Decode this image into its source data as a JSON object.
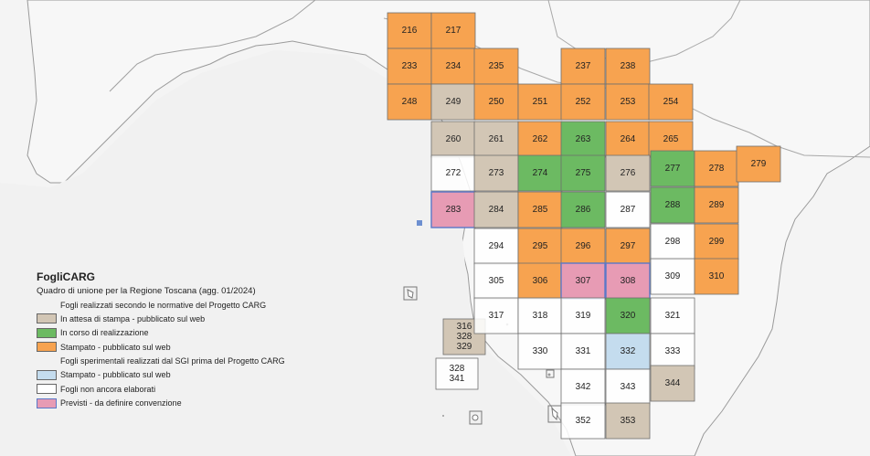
{
  "colors": {
    "attesa": "#d2c6b5",
    "corso": "#6cba62",
    "stampato": "#f7a350",
    "sperimentale": "#c4dcee",
    "non_elaborato": "#ffffff",
    "previsti": "#e79bb4"
  },
  "legend": {
    "title": "FogliCARG",
    "subtitle": "Quadro di unione per la Regione Toscana (agg. 01/2024)",
    "heading1": "Fogli realizzati secondo le normative del Progetto CARG",
    "item_attesa": "In attesa di stampa - pubblicato sul web",
    "item_corso": "In corso di realizzazione",
    "item_stampato": "Stampato - pubblicato sul web",
    "heading2": "Fogli sperimentali realizzati dal SGI prima del Progetto CARG",
    "item_sperimentale": "Stampato - pubblicato sul web",
    "item_non_elaborato": "Fogli non ancora elaborati",
    "item_previsti": "Previsti - da definire convenzione"
  },
  "sheets": [
    {
      "id": "216",
      "status": "stampato"
    },
    {
      "id": "217",
      "status": "stampato"
    },
    {
      "id": "233",
      "status": "stampato"
    },
    {
      "id": "234",
      "status": "stampato"
    },
    {
      "id": "235",
      "status": "stampato"
    },
    {
      "id": "237",
      "status": "stampato"
    },
    {
      "id": "238",
      "status": "stampato"
    },
    {
      "id": "248",
      "status": "stampato"
    },
    {
      "id": "249",
      "status": "attesa"
    },
    {
      "id": "250",
      "status": "stampato"
    },
    {
      "id": "251",
      "status": "stampato"
    },
    {
      "id": "252",
      "status": "stampato"
    },
    {
      "id": "253",
      "status": "stampato"
    },
    {
      "id": "254",
      "status": "stampato"
    },
    {
      "id": "260",
      "status": "attesa"
    },
    {
      "id": "261",
      "status": "attesa"
    },
    {
      "id": "262",
      "status": "stampato"
    },
    {
      "id": "263",
      "status": "corso"
    },
    {
      "id": "264",
      "status": "stampato"
    },
    {
      "id": "265",
      "status": "stampato"
    },
    {
      "id": "272",
      "status": "non_elaborato"
    },
    {
      "id": "273",
      "status": "attesa"
    },
    {
      "id": "274",
      "status": "corso"
    },
    {
      "id": "275",
      "status": "corso"
    },
    {
      "id": "276",
      "status": "attesa"
    },
    {
      "id": "277",
      "status": "corso"
    },
    {
      "id": "278",
      "status": "stampato"
    },
    {
      "id": "279",
      "status": "stampato"
    },
    {
      "id": "283",
      "status": "previsti"
    },
    {
      "id": "284",
      "status": "attesa"
    },
    {
      "id": "285",
      "status": "stampato"
    },
    {
      "id": "286",
      "status": "corso"
    },
    {
      "id": "287",
      "status": "non_elaborato"
    },
    {
      "id": "288",
      "status": "corso"
    },
    {
      "id": "289",
      "status": "stampato"
    },
    {
      "id": "294",
      "status": "non_elaborato"
    },
    {
      "id": "295",
      "status": "stampato"
    },
    {
      "id": "296",
      "status": "stampato"
    },
    {
      "id": "297",
      "status": "stampato"
    },
    {
      "id": "298",
      "status": "non_elaborato"
    },
    {
      "id": "299",
      "status": "stampato"
    },
    {
      "id": "305",
      "status": "non_elaborato"
    },
    {
      "id": "306",
      "status": "stampato"
    },
    {
      "id": "307",
      "status": "previsti"
    },
    {
      "id": "308",
      "status": "previsti"
    },
    {
      "id": "309",
      "status": "non_elaborato"
    },
    {
      "id": "310",
      "status": "stampato"
    },
    {
      "id": "316\n328\n329",
      "status": "attesa"
    },
    {
      "id": "317",
      "status": "non_elaborato"
    },
    {
      "id": "318",
      "status": "non_elaborato"
    },
    {
      "id": "319",
      "status": "non_elaborato"
    },
    {
      "id": "320",
      "status": "corso"
    },
    {
      "id": "321",
      "status": "non_elaborato"
    },
    {
      "id": "328\n341",
      "status": "non_elaborato"
    },
    {
      "id": "330",
      "status": "non_elaborato"
    },
    {
      "id": "331",
      "status": "non_elaborato"
    },
    {
      "id": "332",
      "status": "sperimentale"
    },
    {
      "id": "333",
      "status": "non_elaborato"
    },
    {
      "id": "342",
      "status": "non_elaborato"
    },
    {
      "id": "343",
      "status": "non_elaborato"
    },
    {
      "id": "344",
      "status": "attesa"
    },
    {
      "id": "352",
      "status": "non_elaborato"
    },
    {
      "id": "353",
      "status": "attesa"
    }
  ]
}
